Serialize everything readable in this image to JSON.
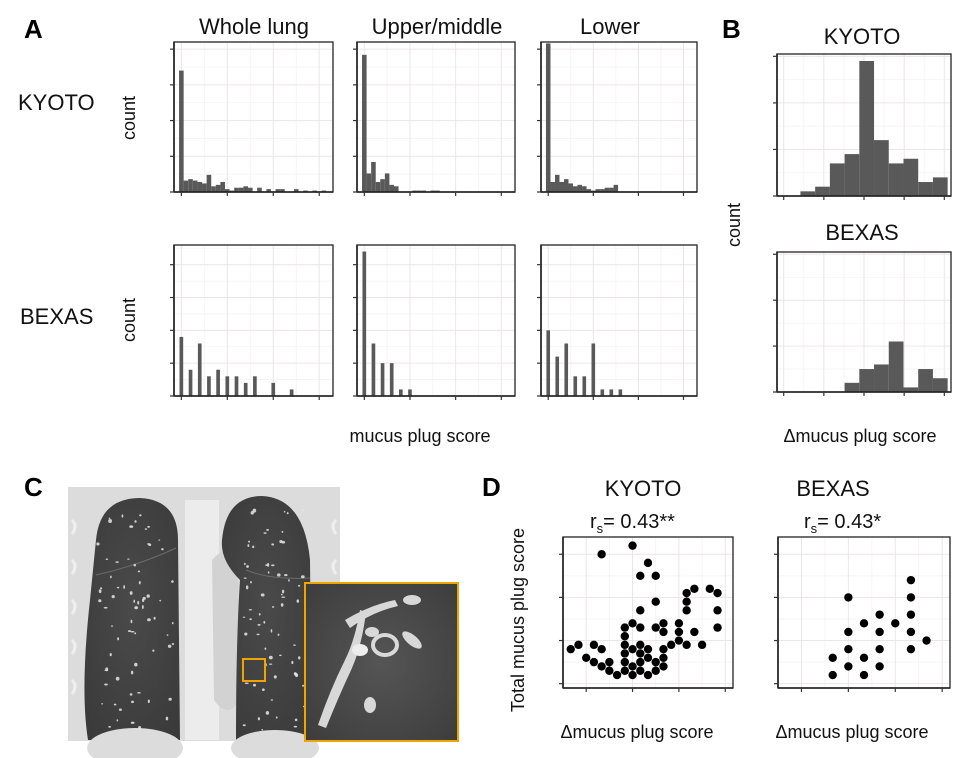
{
  "figure": {
    "panel_letters": {
      "A": "A",
      "B": "B",
      "C": "C",
      "D": "D"
    }
  },
  "chart_data": [
    {
      "id": "A",
      "type": "bar",
      "description": "Histograms of mucus plug score by lung region and cohort",
      "column_titles": [
        "Whole lung",
        "Upper/middle",
        "Lower"
      ],
      "row_labels": [
        "KYOTO",
        "BEXAS"
      ],
      "ylabel": "count",
      "xlabel": "mucus plug score",
      "xlim": [
        -0.8,
        16.5
      ],
      "xticks": [
        0,
        5,
        10,
        15
      ],
      "grid": true,
      "rows": [
        {
          "name": "KYOTO",
          "ylim": [
            0,
            105
          ],
          "yticks": [
            0,
            25,
            50,
            75,
            100
          ],
          "bin_width": 0.5,
          "series": [
            {
              "name": "Whole lung",
              "x": [
                0,
                0.5,
                1,
                1.5,
                2,
                2.5,
                3,
                3.5,
                4,
                4.5,
                5,
                5.5,
                6,
                6.5,
                7,
                7.5,
                8,
                8.5,
                9,
                9.5,
                10,
                10.5,
                11,
                11.5,
                12,
                12.5,
                13,
                13.5,
                14,
                14.5,
                15,
                15.5,
                16
              ],
              "values": [
                85,
                8,
                9,
                8,
                7,
                6,
                12,
                4,
                5,
                7,
                2,
                1,
                3,
                3,
                4,
                3,
                0,
                3,
                0,
                2,
                0,
                2,
                2,
                0,
                0,
                2,
                0,
                1,
                0,
                1,
                0,
                1,
                0
              ]
            },
            {
              "name": "Upper/middle",
              "x": [
                0,
                0.5,
                1,
                1.5,
                2,
                2.5,
                3,
                3.5,
                4,
                4.5,
                5,
                5.5,
                6,
                6.5,
                7,
                7.5,
                8,
                8.5
              ],
              "values": [
                96,
                13,
                21,
                7,
                9,
                13,
                5,
                4,
                0,
                0,
                0,
                1,
                1,
                1,
                0,
                1,
                1,
                0
              ]
            },
            {
              "name": "Lower",
              "x": [
                0,
                0.5,
                1,
                1.5,
                2,
                2.5,
                3,
                3.5,
                4,
                4.5,
                5,
                5.5,
                6,
                6.5,
                7,
                7.5,
                8
              ],
              "values": [
                104,
                7,
                12,
                7,
                9,
                6,
                4,
                5,
                4,
                2,
                1,
                2,
                2,
                3,
                3,
                5,
                0
              ]
            }
          ]
        },
        {
          "name": "BEXAS",
          "ylim": [
            0,
            23
          ],
          "yticks": [
            0,
            5,
            10,
            15,
            20
          ],
          "bin_width": 0.5,
          "series": [
            {
              "name": "Whole lung",
              "x": [
                0,
                1,
                2,
                3,
                4,
                5,
                6,
                7,
                8,
                10,
                12
              ],
              "values": [
                9,
                4,
                8,
                3,
                4,
                3,
                3,
                2,
                3,
                2,
                1
              ]
            },
            {
              "name": "Upper/middle",
              "x": [
                0,
                1,
                2,
                3,
                4,
                5
              ],
              "values": [
                22,
                8,
                5,
                5,
                1,
                1
              ]
            },
            {
              "name": "Lower",
              "x": [
                0,
                1,
                2,
                3,
                4,
                5,
                6,
                7,
                8
              ],
              "values": [
                10,
                6,
                8,
                3,
                3,
                8,
                1,
                1,
                1
              ]
            }
          ]
        }
      ]
    },
    {
      "id": "B",
      "type": "bar",
      "description": "Histograms of change in mucus plug score",
      "ylabel": "count",
      "xlabel": "Δmucus plug score",
      "xlim": [
        -6.5,
        6.5
      ],
      "xticks": [
        -6,
        -3,
        0,
        3,
        6
      ],
      "ylim": [
        0,
        30.5
      ],
      "yticks": [
        0,
        10,
        20,
        30
      ],
      "bin_width": 1.1,
      "grid": true,
      "series": [
        {
          "name": "KYOTO",
          "bin_centers": [
            -4.2,
            -3.1,
            -2.0,
            -0.9,
            0.2,
            1.3,
            2.4,
            3.5,
            4.6,
            5.7
          ],
          "values": [
            1,
            2,
            7,
            9,
            29,
            12,
            7,
            8,
            3,
            4
          ]
        },
        {
          "name": "BEXAS",
          "bin_centers": [
            -0.9,
            0.2,
            1.3,
            2.4,
            3.5,
            4.6,
            5.7
          ],
          "values": [
            2,
            5,
            6,
            11,
            1,
            5,
            3
          ]
        }
      ]
    },
    {
      "id": "D",
      "type": "scatter",
      "description": "Total mucus plug score versus change in mucus plug score",
      "ylabel": "Total mucus plug score",
      "xlabel": "Δmucus plug score",
      "xlim": [
        -4.5,
        6.5
      ],
      "xticks": [
        -3,
        0,
        3,
        6
      ],
      "ylim": [
        -0.5,
        17
      ],
      "yticks": [
        0,
        5,
        10,
        15
      ],
      "grid": true,
      "series": [
        {
          "name": "KYOTO",
          "stat_text": "= 0.43**",
          "points": [
            [
              -4,
              4
            ],
            [
              -3.5,
              4.5
            ],
            [
              -3,
              3
            ],
            [
              -2.5,
              4.5
            ],
            [
              -2.5,
              2.5
            ],
            [
              -2,
              4
            ],
            [
              -2,
              2
            ],
            [
              -2,
              15
            ],
            [
              -1.5,
              2.5
            ],
            [
              -1.5,
              1.5
            ],
            [
              -1,
              1
            ],
            [
              -0.5,
              1.5
            ],
            [
              -0.5,
              2.5
            ],
            [
              -0.5,
              3.5
            ],
            [
              -0.5,
              4.5
            ],
            [
              -0.5,
              5.5
            ],
            [
              -0.5,
              6.5
            ],
            [
              0,
              1
            ],
            [
              0,
              2
            ],
            [
              0,
              4
            ],
            [
              0,
              7
            ],
            [
              0,
              16
            ],
            [
              0.5,
              1.5
            ],
            [
              0.5,
              2.5
            ],
            [
              0.5,
              3.5
            ],
            [
              0.5,
              4.5
            ],
            [
              0.5,
              6.5
            ],
            [
              0.5,
              8.5
            ],
            [
              0.5,
              12.5
            ],
            [
              1,
              1
            ],
            [
              1,
              3
            ],
            [
              1,
              4
            ],
            [
              1,
              14
            ],
            [
              1.5,
              1.5
            ],
            [
              1.5,
              2.5
            ],
            [
              1.5,
              6.5
            ],
            [
              1.5,
              9.5
            ],
            [
              1.5,
              12.5
            ],
            [
              2,
              2
            ],
            [
              2,
              3
            ],
            [
              2,
              4
            ],
            [
              2,
              6
            ],
            [
              2,
              7
            ],
            [
              2.5,
              4.5
            ],
            [
              3,
              5
            ],
            [
              3,
              6
            ],
            [
              3,
              7
            ],
            [
              3.5,
              4.5
            ],
            [
              3.5,
              8.5
            ],
            [
              3.5,
              9.5
            ],
            [
              3.5,
              10.5
            ],
            [
              4,
              6
            ],
            [
              4,
              11
            ],
            [
              4.5,
              4.5
            ],
            [
              5,
              11
            ],
            [
              5.5,
              6.5
            ],
            [
              5.5,
              8.5
            ],
            [
              5.5,
              10.5
            ]
          ]
        },
        {
          "name": "BEXAS",
          "stat_text": "= 0.43*",
          "points": [
            [
              -1,
              1
            ],
            [
              -1,
              3
            ],
            [
              0,
              2
            ],
            [
              0,
              4
            ],
            [
              0,
              6
            ],
            [
              0,
              10
            ],
            [
              1,
              1
            ],
            [
              1,
              3
            ],
            [
              1,
              7
            ],
            [
              2,
              2
            ],
            [
              2,
              4
            ],
            [
              2,
              6
            ],
            [
              2,
              8
            ],
            [
              3,
              7
            ],
            [
              4,
              4
            ],
            [
              4,
              6
            ],
            [
              4,
              8
            ],
            [
              4,
              10
            ],
            [
              4,
              12
            ],
            [
              5,
              5
            ]
          ]
        }
      ],
      "stat_symbol": "r",
      "stat_subscript": "s"
    }
  ],
  "panel_c": {
    "image_description": "Coronal chest CT slice showing both lungs with an orange box marking a region containing a mucus plug, and a magnified inset of that region",
    "highlight_color": "#f0a400"
  },
  "colors": {
    "bar_fill": "#595959",
    "point_fill": "#000000",
    "grid": "#ebe6e6",
    "inset_border": "#f0a400"
  }
}
